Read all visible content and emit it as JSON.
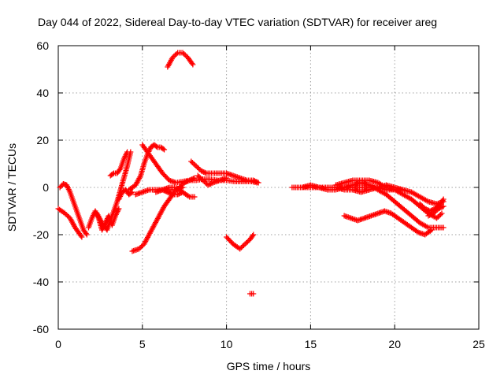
{
  "chart_data": {
    "type": "scatter",
    "title": "Day 044 of 2022, Sidereal Day-to-day VTEC variation (SDTVAR) for receiver areg",
    "xlabel": "GPS time / hours",
    "ylabel": "SDTVAR / TECUs",
    "xlim": [
      0,
      25
    ],
    "ylim": [
      -60,
      60
    ],
    "xticks": [
      0,
      5,
      10,
      15,
      20,
      25
    ],
    "yticks": [
      -60,
      -40,
      -20,
      0,
      20,
      40,
      60
    ],
    "grid": true,
    "marker": "+",
    "color": "#ff0000",
    "series": [
      {
        "name": "SDTVAR",
        "tracks": [
          [
            [
              0.0,
              -9
            ],
            [
              0.4,
              -11
            ],
            [
              0.7,
              -13
            ],
            [
              1.0,
              -17
            ],
            [
              1.2,
              -19
            ],
            [
              1.4,
              -21
            ]
          ],
          [
            [
              0.1,
              0
            ],
            [
              0.3,
              1.5
            ],
            [
              0.5,
              1
            ],
            [
              0.7,
              -2
            ],
            [
              0.9,
              -6
            ],
            [
              1.1,
              -10
            ],
            [
              1.3,
              -14
            ],
            [
              1.5,
              -18
            ],
            [
              1.7,
              -20
            ]
          ],
          [
            [
              1.8,
              -17
            ],
            [
              2.0,
              -13
            ],
            [
              2.2,
              -10
            ],
            [
              2.4,
              -13
            ],
            [
              2.6,
              -18
            ],
            [
              2.8,
              -15
            ],
            [
              3.0,
              -12
            ],
            [
              3.2,
              -16
            ],
            [
              3.4,
              -12
            ],
            [
              3.6,
              -9
            ]
          ],
          [
            [
              2.3,
              -11
            ],
            [
              2.6,
              -15
            ],
            [
              2.9,
              -18
            ],
            [
              3.1,
              -14
            ],
            [
              3.3,
              -10
            ],
            [
              3.5,
              -6
            ],
            [
              3.7,
              -1
            ],
            [
              3.9,
              4
            ],
            [
              4.1,
              9
            ],
            [
              4.3,
              15
            ]
          ],
          [
            [
              3.6,
              -5
            ],
            [
              3.8,
              -2
            ],
            [
              4.0,
              -1
            ],
            [
              4.2,
              -3
            ],
            [
              4.4,
              -2
            ]
          ],
          [
            [
              3.1,
              5
            ],
            [
              3.3,
              6
            ],
            [
              3.5,
              6
            ],
            [
              3.7,
              8
            ],
            [
              3.9,
              12
            ],
            [
              4.1,
              15
            ]
          ],
          [
            [
              4.4,
              -27
            ],
            [
              4.8,
              -26
            ],
            [
              5.1,
              -24
            ],
            [
              5.4,
              -20
            ],
            [
              5.7,
              -16
            ],
            [
              6.0,
              -12
            ],
            [
              6.3,
              -8
            ],
            [
              6.6,
              -5
            ],
            [
              6.9,
              -2
            ],
            [
              7.2,
              0
            ],
            [
              7.5,
              2
            ],
            [
              7.8,
              3
            ],
            [
              8.1,
              4
            ]
          ],
          [
            [
              4.2,
              -1
            ],
            [
              4.6,
              1
            ],
            [
              4.9,
              5
            ],
            [
              5.1,
              10
            ],
            [
              5.3,
              14
            ],
            [
              5.5,
              17
            ],
            [
              5.7,
              18
            ],
            [
              5.9,
              17
            ],
            [
              6.1,
              17
            ],
            [
              6.3,
              16
            ]
          ],
          [
            [
              4.6,
              -3
            ],
            [
              5.0,
              -2
            ],
            [
              5.4,
              -1
            ],
            [
              5.8,
              -1
            ],
            [
              6.2,
              -1
            ],
            [
              6.6,
              0
            ],
            [
              7.0,
              0
            ],
            [
              7.4,
              -2
            ],
            [
              7.8,
              -4
            ],
            [
              8.1,
              -4
            ]
          ],
          [
            [
              5.0,
              18
            ],
            [
              5.4,
              14
            ],
            [
              5.8,
              10
            ],
            [
              6.2,
              6
            ],
            [
              6.6,
              3
            ],
            [
              7.0,
              2
            ],
            [
              7.4,
              2.5
            ],
            [
              7.8,
              3
            ],
            [
              8.2,
              3
            ],
            [
              8.6,
              3.5
            ],
            [
              9.0,
              3.5
            ],
            [
              9.5,
              3
            ],
            [
              10.0,
              3
            ],
            [
              10.5,
              2.5
            ],
            [
              11.0,
              2.5
            ],
            [
              11.5,
              2.5
            ],
            [
              11.8,
              2
            ]
          ],
          [
            [
              5.8,
              -2
            ],
            [
              6.2,
              -1
            ],
            [
              6.6,
              -1
            ],
            [
              7.0,
              -1
            ],
            [
              7.4,
              0
            ]
          ],
          [
            [
              6.2,
              -1
            ],
            [
              6.5,
              -2
            ],
            [
              6.8,
              -3
            ],
            [
              7.1,
              -3
            ],
            [
              7.4,
              -2
            ]
          ],
          [
            [
              6.5,
              51
            ],
            [
              6.8,
              55
            ],
            [
              7.1,
              57
            ],
            [
              7.4,
              57
            ],
            [
              7.7,
              55
            ],
            [
              8.0,
              52
            ]
          ],
          [
            [
              7.9,
              11
            ],
            [
              8.2,
              9
            ],
            [
              8.5,
              7
            ],
            [
              8.8,
              6
            ],
            [
              9.2,
              6
            ],
            [
              9.6,
              6
            ],
            [
              10.0,
              6
            ],
            [
              10.4,
              5
            ],
            [
              10.8,
              4
            ],
            [
              11.2,
              3
            ],
            [
              11.6,
              3
            ],
            [
              11.9,
              2
            ]
          ],
          [
            [
              8.3,
              5
            ],
            [
              8.6,
              3
            ],
            [
              8.9,
              1
            ],
            [
              9.2,
              2
            ],
            [
              9.6,
              3
            ],
            [
              10.0,
              4
            ]
          ],
          [
            [
              10.0,
              -21
            ],
            [
              10.4,
              -24
            ],
            [
              10.8,
              -26
            ],
            [
              11.1,
              -24
            ],
            [
              11.4,
              -22
            ],
            [
              11.6,
              -20
            ]
          ],
          [
            [
              11.4,
              -45
            ],
            [
              11.6,
              -45
            ]
          ],
          [
            [
              13.9,
              0
            ],
            [
              14.5,
              0
            ],
            [
              15.0,
              0
            ],
            [
              15.5,
              0
            ],
            [
              16.0,
              0
            ],
            [
              16.5,
              0
            ],
            [
              17.0,
              0
            ],
            [
              17.5,
              0
            ],
            [
              18.0,
              0
            ],
            [
              18.5,
              0
            ],
            [
              19.0,
              0
            ],
            [
              19.5,
              -1
            ],
            [
              20.0,
              -1
            ],
            [
              20.5,
              -1
            ],
            [
              21.0,
              -2
            ],
            [
              21.5,
              -4
            ],
            [
              22.0,
              -6
            ],
            [
              22.5,
              -7
            ],
            [
              22.9,
              -6
            ]
          ],
          [
            [
              14.5,
              0
            ],
            [
              15.0,
              1
            ],
            [
              15.5,
              0
            ],
            [
              16.0,
              -1
            ],
            [
              16.5,
              -1
            ],
            [
              17.0,
              0
            ],
            [
              17.5,
              1
            ],
            [
              18.0,
              2
            ],
            [
              18.5,
              1
            ],
            [
              19.0,
              -1
            ],
            [
              19.5,
              -3
            ],
            [
              20.0,
              -6
            ],
            [
              20.5,
              -9
            ],
            [
              21.0,
              -12
            ],
            [
              21.5,
              -15
            ],
            [
              22.0,
              -17
            ],
            [
              22.5,
              -17
            ],
            [
              22.9,
              -17
            ]
          ],
          [
            [
              16.5,
              1
            ],
            [
              17.0,
              2
            ],
            [
              17.5,
              3
            ],
            [
              18.0,
              3
            ],
            [
              18.5,
              3
            ],
            [
              19.0,
              2
            ],
            [
              19.5,
              0
            ],
            [
              20.0,
              -1
            ],
            [
              20.5,
              -3
            ],
            [
              21.0,
              -5
            ],
            [
              21.5,
              -8
            ],
            [
              22.0,
              -11
            ],
            [
              22.5,
              -13
            ],
            [
              22.8,
              -11
            ]
          ],
          [
            [
              16.5,
              0
            ],
            [
              17.0,
              -1
            ],
            [
              17.5,
              -1
            ],
            [
              18.0,
              -2
            ],
            [
              18.5,
              -1
            ],
            [
              19.0,
              0
            ],
            [
              19.5,
              1
            ],
            [
              20.0,
              0
            ],
            [
              20.5,
              -1
            ]
          ],
          [
            [
              17.0,
              -12
            ],
            [
              17.4,
              -13
            ],
            [
              17.8,
              -14
            ],
            [
              18.2,
              -13
            ],
            [
              18.6,
              -12
            ],
            [
              19.0,
              -11
            ],
            [
              19.4,
              -10
            ],
            [
              19.8,
              -11
            ],
            [
              20.2,
              -13
            ],
            [
              20.6,
              -15
            ],
            [
              21.0,
              -17
            ],
            [
              21.4,
              -19
            ],
            [
              21.8,
              -20
            ],
            [
              22.2,
              -18
            ]
          ],
          [
            [
              21.5,
              -7
            ],
            [
              21.8,
              -9
            ],
            [
              22.1,
              -10
            ],
            [
              22.4,
              -9
            ],
            [
              22.6,
              -8
            ],
            [
              22.9,
              -5
            ]
          ],
          [
            [
              22.0,
              -12
            ],
            [
              22.3,
              -11
            ],
            [
              22.6,
              -9
            ],
            [
              22.9,
              -8
            ]
          ]
        ]
      }
    ]
  }
}
